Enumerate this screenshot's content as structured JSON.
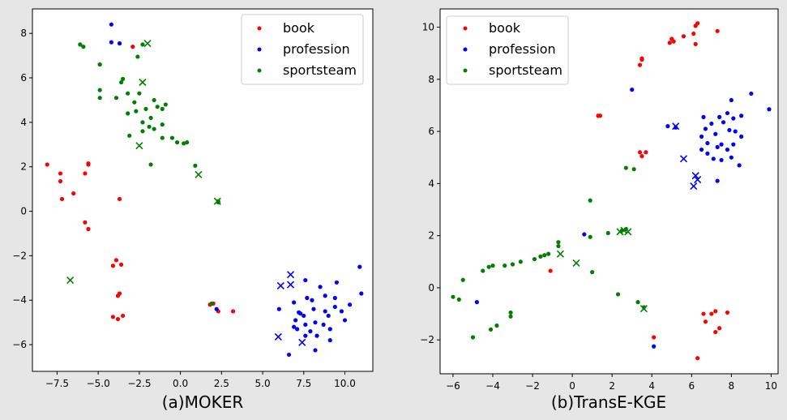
{
  "figure_background": "#e6e6e6",
  "chart_data": [
    {
      "type": "scatter",
      "caption": "(a)MOKER",
      "xlim": [
        -9.0,
        11.7
      ],
      "ylim": [
        -7.2,
        9.1
      ],
      "xticks": [
        -7.5,
        -5.0,
        -2.5,
        0.0,
        2.5,
        5.0,
        7.5,
        10.0
      ],
      "xtick_labels": [
        "−7.5",
        "−5.0",
        "−2.5",
        "0.0",
        "2.5",
        "5.0",
        "7.5",
        "10.0"
      ],
      "yticks": [
        -6,
        -4,
        -2,
        0,
        2,
        4,
        6,
        8
      ],
      "ytick_labels": [
        "−6",
        "−4",
        "−2",
        "0",
        "2",
        "4",
        "6",
        "8"
      ],
      "grid": false,
      "legend": {
        "position": "top-right",
        "entries": [
          "book",
          "profession",
          "sportsteam"
        ]
      },
      "series": [
        {
          "name": "book",
          "color": "#ff0000",
          "dots": [
            [
              -8.1,
              2.1
            ],
            [
              -7.3,
              1.7
            ],
            [
              -7.3,
              1.35
            ],
            [
              -7.2,
              0.55
            ],
            [
              -6.5,
              0.8
            ],
            [
              -5.8,
              1.7
            ],
            [
              -5.6,
              2.1
            ],
            [
              -5.6,
              2.15
            ],
            [
              -5.8,
              -0.5
            ],
            [
              -5.6,
              -0.8
            ],
            [
              -3.7,
              0.55
            ],
            [
              -2.9,
              7.4
            ],
            [
              -4.1,
              -2.45
            ],
            [
              -3.9,
              -2.2
            ],
            [
              -3.6,
              -2.4
            ],
            [
              -3.7,
              -3.7
            ],
            [
              -3.8,
              -3.8
            ],
            [
              -4.1,
              -4.75
            ],
            [
              -3.8,
              -4.85
            ],
            [
              -3.5,
              -4.7
            ],
            [
              1.8,
              -4.2
            ],
            [
              2.0,
              -4.15
            ],
            [
              2.3,
              -4.5
            ],
            [
              3.2,
              -4.5
            ]
          ],
          "crosses": []
        },
        {
          "name": "profession",
          "color": "#0000ff",
          "dots": [
            [
              -4.2,
              8.4
            ],
            [
              -4.2,
              7.6
            ],
            [
              -3.7,
              7.55
            ],
            [
              2.2,
              -4.4
            ],
            [
              6.0,
              -4.4
            ],
            [
              6.6,
              -6.45
            ],
            [
              6.9,
              -5.2
            ],
            [
              7.1,
              -5.3
            ],
            [
              6.9,
              -4.1
            ],
            [
              7.2,
              -4.55
            ],
            [
              7.0,
              -4.9
            ],
            [
              7.3,
              -4.6
            ],
            [
              7.5,
              -4.7
            ],
            [
              7.6,
              -3.1
            ],
            [
              7.6,
              -5.1
            ],
            [
              7.6,
              -5.6
            ],
            [
              7.9,
              -5.4
            ],
            [
              7.7,
              -3.9
            ],
            [
              8.0,
              -4.0
            ],
            [
              8.1,
              -4.4
            ],
            [
              8.2,
              -5.0
            ],
            [
              8.3,
              -5.6
            ],
            [
              8.2,
              -6.25
            ],
            [
              8.5,
              -3.4
            ],
            [
              8.7,
              -5.1
            ],
            [
              8.8,
              -4.5
            ],
            [
              8.8,
              -3.8
            ],
            [
              9.0,
              -4.7
            ],
            [
              9.1,
              -5.3
            ],
            [
              9.1,
              -5.8
            ],
            [
              9.4,
              -3.9
            ],
            [
              9.4,
              -4.3
            ],
            [
              9.5,
              -3.2
            ],
            [
              9.8,
              -4.5
            ],
            [
              10.0,
              -4.9
            ],
            [
              10.3,
              -4.2
            ],
            [
              10.9,
              -2.5
            ],
            [
              11.0,
              -3.7
            ]
          ],
          "crosses": [
            [
              6.7,
              -2.85
            ],
            [
              6.7,
              -3.3
            ],
            [
              6.1,
              -3.35
            ],
            [
              5.95,
              -5.65
            ],
            [
              7.4,
              -5.9
            ]
          ]
        },
        {
          "name": "sportsteam",
          "color": "#008000",
          "dots": [
            [
              -6.1,
              7.5
            ],
            [
              -5.9,
              7.4
            ],
            [
              -4.9,
              6.6
            ],
            [
              -4.9,
              6.6
            ],
            [
              -4.9,
              5.45
            ],
            [
              -4.9,
              5.1
            ],
            [
              -3.9,
              5.1
            ],
            [
              -2.3,
              7.5
            ],
            [
              -2.6,
              6.95
            ],
            [
              -3.5,
              5.95
            ],
            [
              -3.6,
              5.8
            ],
            [
              -3.2,
              5.3
            ],
            [
              -3.2,
              4.4
            ],
            [
              -2.8,
              4.9
            ],
            [
              -2.5,
              5.3
            ],
            [
              -2.7,
              4.5
            ],
            [
              -2.3,
              4.0
            ],
            [
              -2.1,
              4.6
            ],
            [
              -2.3,
              3.6
            ],
            [
              -1.9,
              3.8
            ],
            [
              -1.8,
              4.2
            ],
            [
              -1.6,
              5.0
            ],
            [
              -1.4,
              4.7
            ],
            [
              -1.6,
              3.7
            ],
            [
              -1.1,
              4.6
            ],
            [
              -0.9,
              4.8
            ],
            [
              -1.1,
              3.9
            ],
            [
              -1.1,
              3.3
            ],
            [
              -0.5,
              3.3
            ],
            [
              -0.2,
              3.1
            ],
            [
              0.2,
              3.05
            ],
            [
              0.4,
              3.1
            ],
            [
              -3.1,
              3.4
            ],
            [
              -1.8,
              2.1
            ],
            [
              0.9,
              2.05
            ],
            [
              2.3,
              0.45
            ],
            [
              2.3,
              0.4
            ],
            [
              1.9,
              -4.15
            ]
          ],
          "crosses": [
            [
              -2.0,
              7.55
            ],
            [
              -2.3,
              5.8
            ],
            [
              -2.5,
              2.95
            ],
            [
              1.1,
              1.65
            ],
            [
              2.25,
              0.45
            ],
            [
              -6.7,
              -3.1
            ]
          ]
        }
      ]
    },
    {
      "type": "scatter",
      "caption": "(b)TransE-KGE",
      "xlim": [
        -6.65,
        10.35
      ],
      "ylim": [
        -3.3,
        10.7
      ],
      "xticks": [
        -6,
        -4,
        -2,
        0,
        2,
        4,
        6,
        8,
        10
      ],
      "xtick_labels": [
        "−6",
        "−4",
        "−2",
        "0",
        "2",
        "4",
        "6",
        "8",
        "10"
      ],
      "yticks": [
        -2,
        0,
        2,
        4,
        6,
        8,
        10
      ],
      "ytick_labels": [
        "−2",
        "0",
        "2",
        "4",
        "6",
        "8",
        "10"
      ],
      "grid": false,
      "legend": {
        "position": "top-left",
        "entries": [
          "book",
          "profession",
          "sportsteam"
        ]
      },
      "series": [
        {
          "name": "book",
          "color": "#ff0000",
          "dots": [
            [
              6.3,
              10.15
            ],
            [
              6.2,
              10.05
            ],
            [
              7.3,
              9.85
            ],
            [
              6.1,
              9.75
            ],
            [
              5.6,
              9.65
            ],
            [
              5.0,
              9.55
            ],
            [
              4.9,
              9.4
            ],
            [
              5.1,
              9.45
            ],
            [
              6.2,
              9.35
            ],
            [
              3.5,
              8.8
            ],
            [
              3.5,
              8.75
            ],
            [
              3.4,
              8.55
            ],
            [
              1.3,
              6.6
            ],
            [
              1.4,
              6.6
            ],
            [
              3.4,
              5.2
            ],
            [
              3.7,
              5.2
            ],
            [
              3.5,
              5.05
            ],
            [
              -1.1,
              0.65
            ],
            [
              7.2,
              -0.9
            ],
            [
              7.0,
              -1.0
            ],
            [
              6.6,
              -1.0
            ],
            [
              7.8,
              -0.95
            ],
            [
              6.7,
              -1.3
            ],
            [
              7.4,
              -1.55
            ],
            [
              7.2,
              -1.7
            ],
            [
              4.1,
              -1.9
            ],
            [
              6.3,
              -2.7
            ]
          ],
          "crosses": []
        },
        {
          "name": "profession",
          "color": "#0000ff",
          "dots": [
            [
              3.0,
              7.6
            ],
            [
              4.8,
              6.2
            ],
            [
              5.2,
              6.15
            ],
            [
              6.6,
              6.55
            ],
            [
              6.5,
              5.8
            ],
            [
              7.0,
              6.3
            ],
            [
              7.4,
              6.55
            ],
            [
              7.6,
              6.35
            ],
            [
              7.8,
              6.7
            ],
            [
              8.0,
              7.2
            ],
            [
              8.1,
              6.5
            ],
            [
              8.5,
              6.6
            ],
            [
              9.0,
              7.45
            ],
            [
              9.9,
              6.85
            ],
            [
              6.7,
              6.1
            ],
            [
              7.2,
              5.9
            ],
            [
              7.5,
              5.5
            ],
            [
              7.9,
              6.05
            ],
            [
              8.2,
              6.0
            ],
            [
              8.5,
              5.8
            ],
            [
              6.8,
              5.55
            ],
            [
              7.3,
              5.4
            ],
            [
              7.8,
              5.3
            ],
            [
              8.0,
              5.0
            ],
            [
              8.1,
              5.5
            ],
            [
              6.5,
              5.3
            ],
            [
              6.8,
              5.15
            ],
            [
              7.1,
              4.95
            ],
            [
              7.5,
              4.9
            ],
            [
              8.4,
              4.7
            ],
            [
              7.3,
              4.1
            ],
            [
              0.6,
              2.05
            ],
            [
              -4.8,
              -0.55
            ],
            [
              4.1,
              -2.25
            ]
          ],
          "crosses": [
            [
              5.2,
              6.2
            ],
            [
              5.6,
              4.95
            ],
            [
              6.2,
              4.3
            ],
            [
              6.3,
              4.15
            ],
            [
              6.1,
              3.9
            ]
          ]
        },
        {
          "name": "sportsteam",
          "color": "#008000",
          "dots": [
            [
              0.9,
              3.35
            ],
            [
              2.7,
              4.6
            ],
            [
              3.1,
              4.55
            ],
            [
              2.7,
              2.25
            ],
            [
              2.5,
              2.2
            ],
            [
              1.8,
              2.1
            ],
            [
              0.9,
              1.95
            ],
            [
              -0.7,
              1.75
            ],
            [
              -0.7,
              1.6
            ],
            [
              -1.2,
              1.3
            ],
            [
              -1.4,
              1.25
            ],
            [
              -1.6,
              1.2
            ],
            [
              -1.9,
              1.1
            ],
            [
              -2.6,
              1.0
            ],
            [
              -3.0,
              0.9
            ],
            [
              -3.4,
              0.85
            ],
            [
              -4.0,
              0.85
            ],
            [
              -4.2,
              0.8
            ],
            [
              -4.5,
              0.65
            ],
            [
              -5.5,
              0.3
            ],
            [
              -6.0,
              -0.35
            ],
            [
              -5.7,
              -0.45
            ],
            [
              -3.1,
              -0.95
            ],
            [
              -3.1,
              -1.1
            ],
            [
              -3.8,
              -1.45
            ],
            [
              -4.1,
              -1.6
            ],
            [
              -5.0,
              -1.9
            ],
            [
              1.0,
              0.6
            ],
            [
              2.3,
              -0.25
            ],
            [
              3.3,
              -0.55
            ],
            [
              3.6,
              -0.75
            ]
          ],
          "crosses": [
            [
              2.4,
              2.15
            ],
            [
              2.6,
              2.2
            ],
            [
              2.8,
              2.15
            ],
            [
              -0.6,
              1.3
            ],
            [
              0.2,
              0.95
            ],
            [
              3.6,
              -0.8
            ]
          ]
        }
      ]
    }
  ]
}
